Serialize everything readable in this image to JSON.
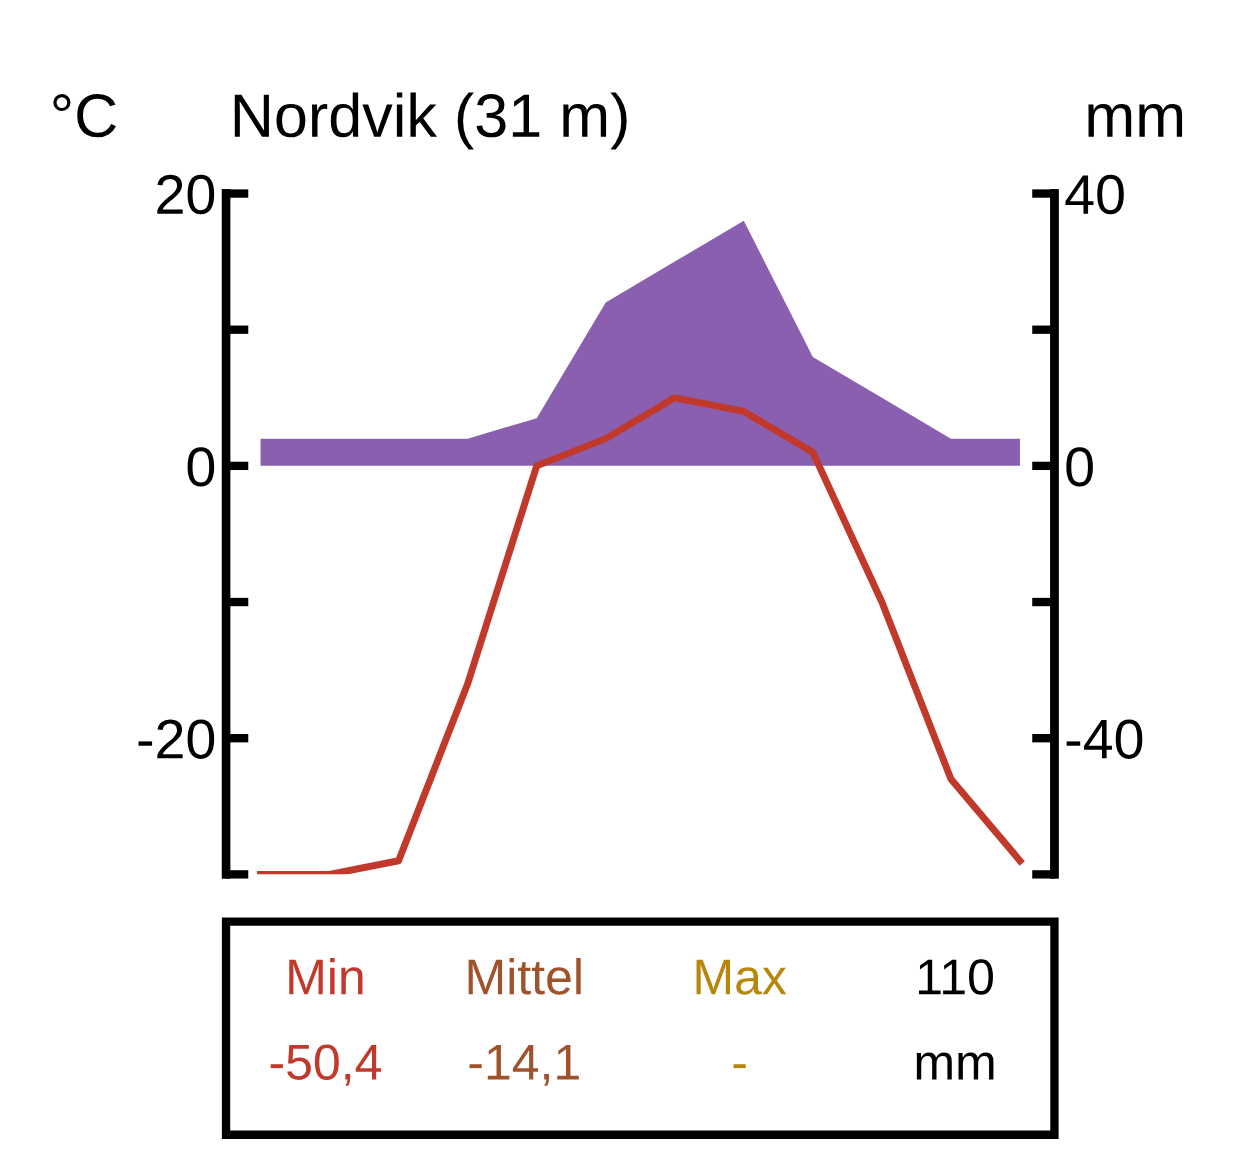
{
  "chart_data": {
    "type": "line",
    "title": "Nordvik (31 m)",
    "ylabel": "°C",
    "y2label": "mm",
    "categories": [
      null,
      null,
      null,
      null,
      null,
      null,
      null,
      null,
      null,
      null,
      null,
      null
    ],
    "series": [
      {
        "type": "area",
        "axis": "y2",
        "color": "#8a5fb0",
        "values": [
          4,
          4,
          4,
          4,
          7,
          24,
          30,
          36,
          16,
          10,
          4,
          4
        ]
      },
      {
        "color": "#c0392b",
        "values": [
          -30,
          -30,
          -29,
          -16,
          0,
          2,
          5,
          4,
          1,
          -10,
          -23,
          -29
        ]
      }
    ],
    "ylim": [
      -30,
      20
    ],
    "yticks": [
      {
        "value": -30,
        "label": null
      },
      -20,
      {
        "value": -10,
        "label": null
      },
      0,
      {
        "value": 10,
        "label": null
      },
      20
    ],
    "y2lim": [
      -60,
      40
    ],
    "y2ticks": [
      {
        "value": -60,
        "label": null
      },
      -40,
      {
        "value": -20,
        "label": null
      },
      0,
      {
        "value": 20,
        "label": null
      },
      40
    ],
    "grid": false,
    "legend": false,
    "annotations": [
      "Min",
      "Mittel",
      "Max",
      "110",
      "-50,4",
      "-14,1",
      "-",
      "mm"
    ]
  }
}
